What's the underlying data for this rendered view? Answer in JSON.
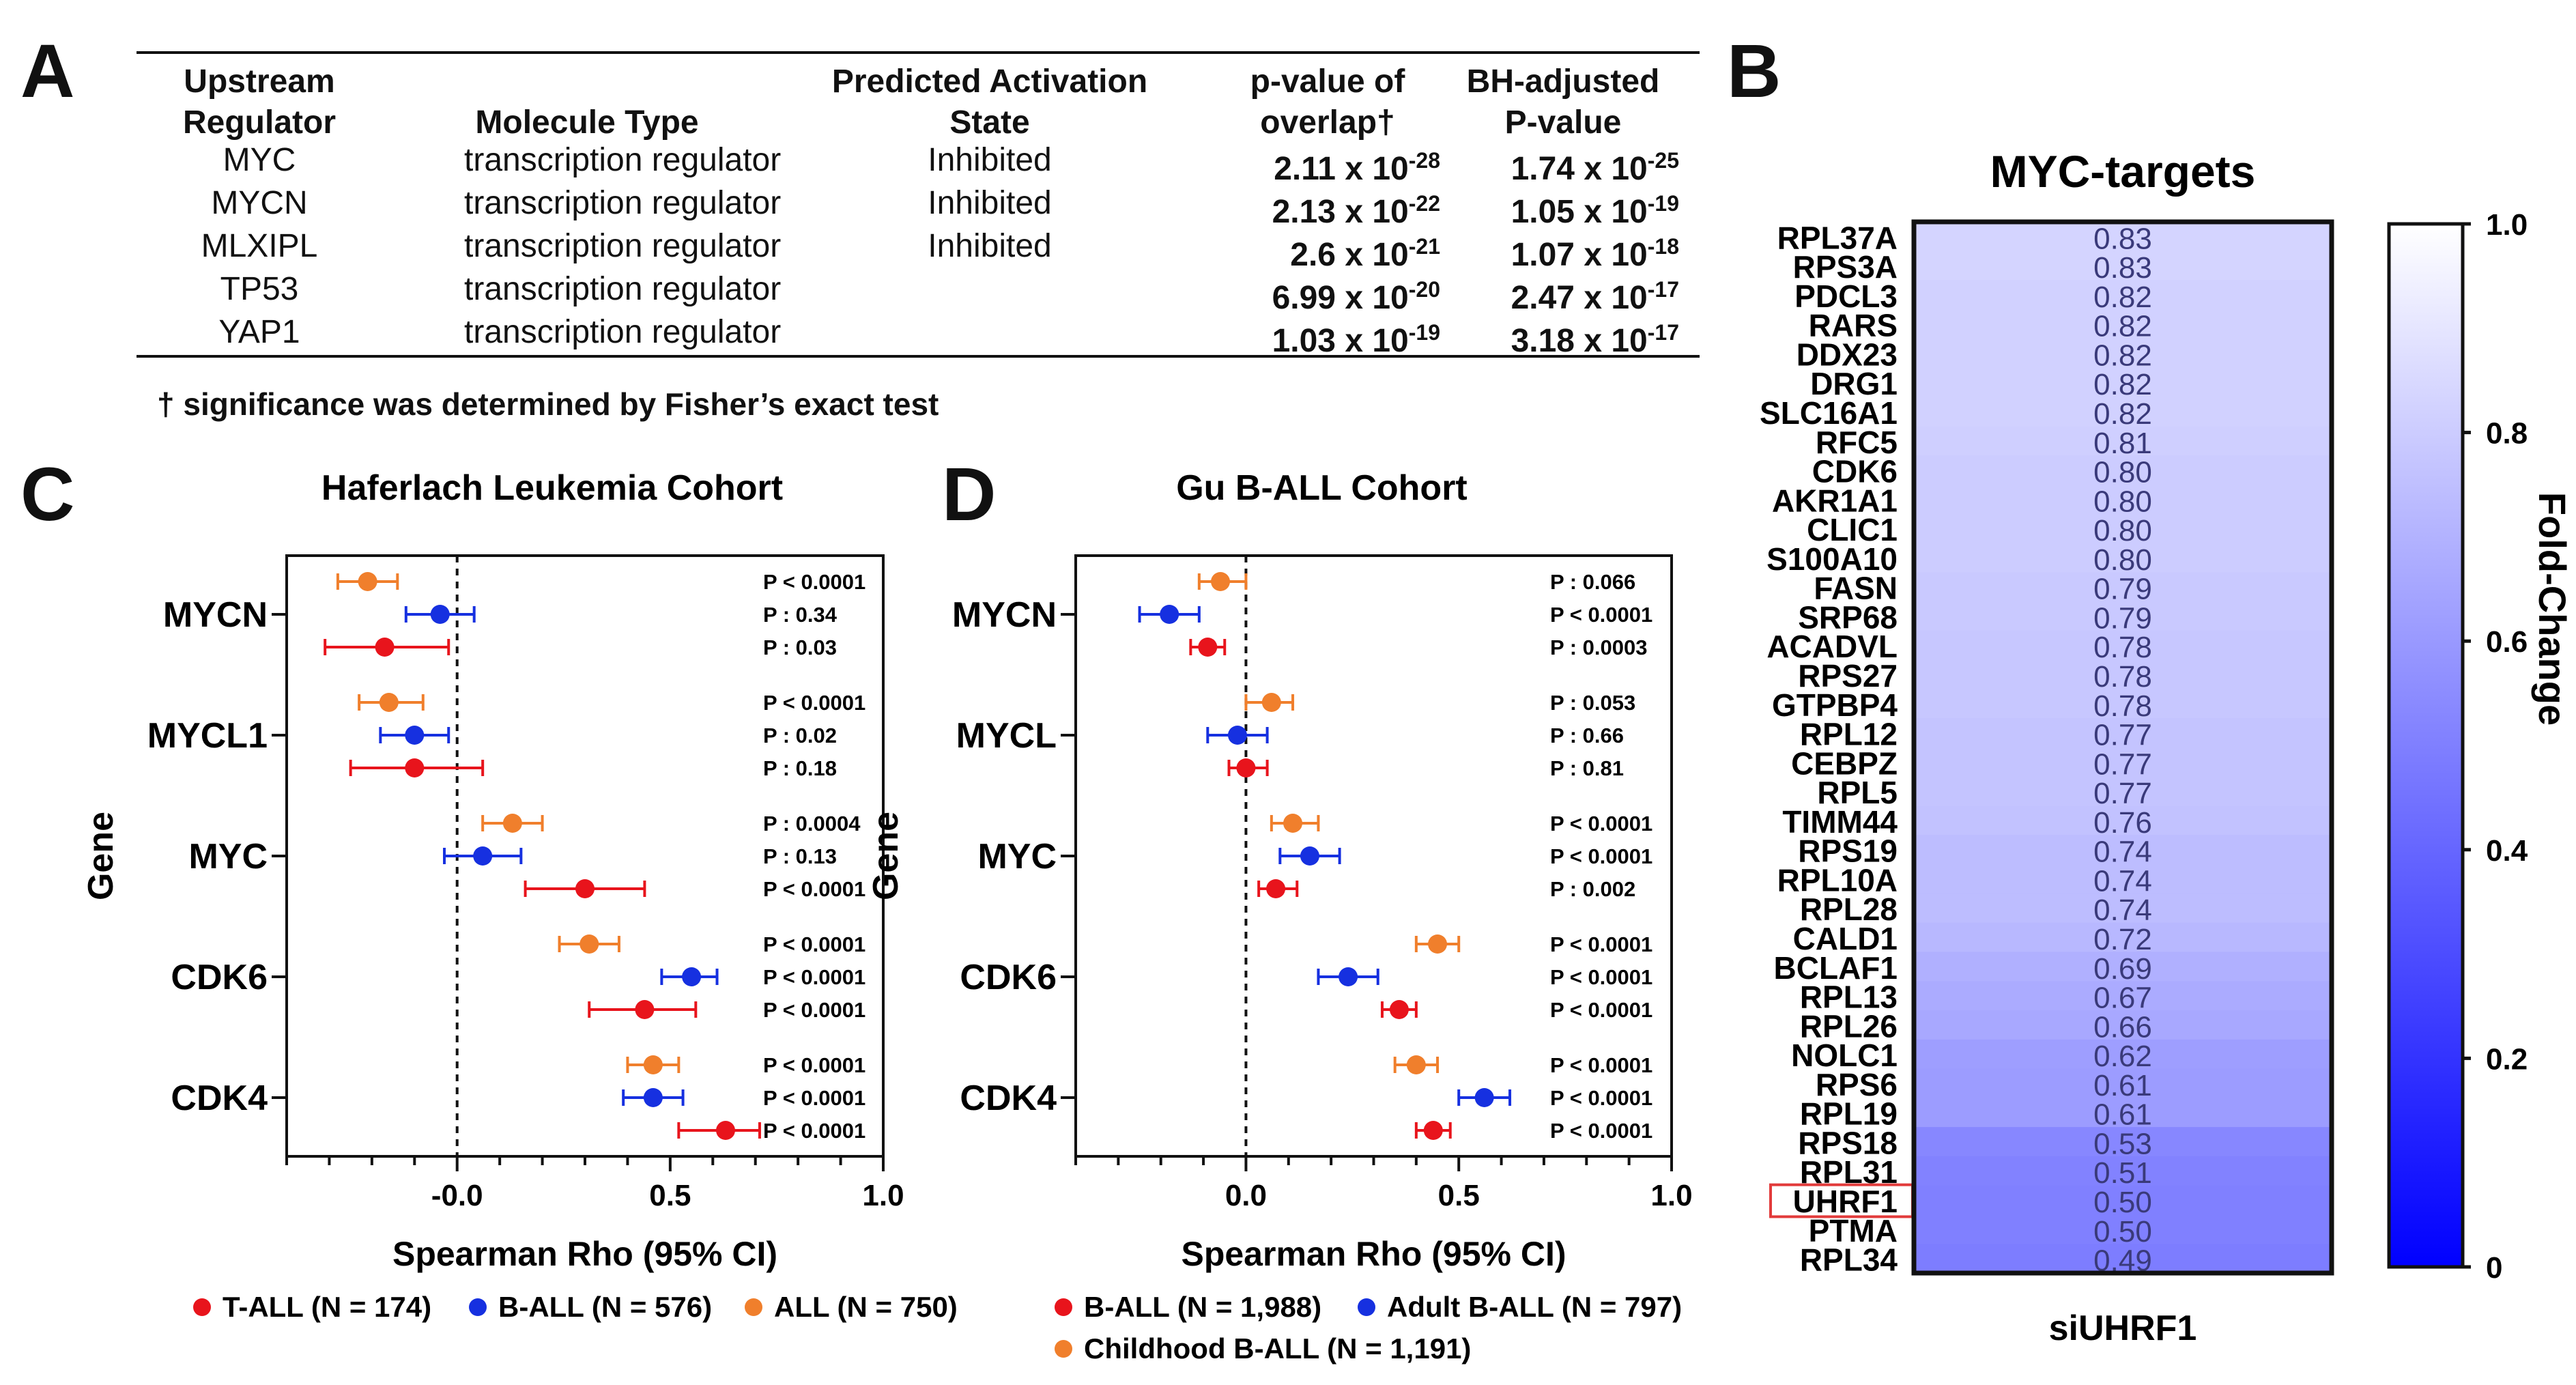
{
  "panel_labels": {
    "a": "A",
    "b": "B",
    "c": "C",
    "d": "D"
  },
  "table": {
    "headers": [
      [
        "Upstream",
        "Regulator"
      ],
      [
        "",
        "Molecule Type"
      ],
      [
        "Predicted Activation",
        "State"
      ],
      [
        "p-value of",
        "overlap†"
      ],
      [
        "BH-adjusted",
        "P-value"
      ]
    ],
    "rows": [
      {
        "regulator": "MYC",
        "type": "transcription regulator",
        "state": "Inhibited",
        "p_base": "2.11 x 10",
        "p_exp": "-28",
        "bh_base": "1.74 x 10",
        "bh_exp": "-25"
      },
      {
        "regulator": "MYCN",
        "type": "transcription regulator",
        "state": "Inhibited",
        "p_base": "2.13 x 10",
        "p_exp": "-22",
        "bh_base": "1.05 x 10",
        "bh_exp": "-19"
      },
      {
        "regulator": "MLXIPL",
        "type": "transcription regulator",
        "state": "Inhibited",
        "p_base": "2.6 x 10",
        "p_exp": "-21",
        "bh_base": "1.07 x 10",
        "bh_exp": "-18"
      },
      {
        "regulator": "TP53",
        "type": "transcription regulator",
        "state": "",
        "p_base": "6.99 x 10",
        "p_exp": "-20",
        "bh_base": "2.47 x 10",
        "bh_exp": "-17"
      },
      {
        "regulator": "YAP1",
        "type": "transcription regulator",
        "state": "",
        "p_base": "1.03 x 10",
        "p_exp": "-19",
        "bh_base": "3.18 x 10",
        "bh_exp": "-17"
      }
    ],
    "footnote": "† significance was determined by Fisher’s exact test"
  },
  "chart_data": [
    {
      "type": "scatter",
      "subtype": "forest",
      "title": "Haferlach Leukemia Cohort",
      "xlabel": "Spearman Rho (95% CI)",
      "ylabel": "Gene",
      "xlim": [
        -0.4,
        1.0
      ],
      "xticks": [
        "-0.0",
        "0.5",
        "1.0"
      ],
      "xtick_values": [
        0,
        0.5,
        1.0
      ],
      "reference_line": 0,
      "genes": [
        "MYCN",
        "MYCL1",
        "MYC",
        "CDK6",
        "CDK4"
      ],
      "series": [
        {
          "name": "ALL (N = 750)",
          "color": "#f07f2c",
          "values": [
            -0.21,
            -0.16,
            0.13,
            0.31,
            0.46
          ],
          "ci_low": [
            -0.28,
            -0.23,
            0.06,
            0.24,
            0.4
          ],
          "ci_high": [
            -0.14,
            -0.08,
            0.2,
            0.38,
            0.52
          ],
          "pvalues": [
            "P < 0.0001",
            "P < 0.0001",
            "P : 0.0004",
            "P < 0.0001",
            "P < 0.0001"
          ]
        },
        {
          "name": "B-ALL (N = 576)",
          "color": "#1630e0",
          "values": [
            -0.04,
            -0.1,
            0.06,
            0.55,
            0.46
          ],
          "ci_low": [
            -0.12,
            -0.18,
            -0.03,
            0.48,
            0.39
          ],
          "ci_high": [
            0.04,
            -0.02,
            0.15,
            0.61,
            0.53
          ],
          "pvalues": [
            "P : 0.34",
            "P : 0.02",
            "P : 0.13",
            "P < 0.0001",
            "P < 0.0001"
          ]
        },
        {
          "name": "T-ALL (N = 174)",
          "color": "#e8141c",
          "values": [
            -0.17,
            -0.1,
            0.3,
            0.44,
            0.63
          ],
          "ci_low": [
            -0.31,
            -0.25,
            0.16,
            0.31,
            0.52
          ],
          "ci_high": [
            -0.02,
            0.06,
            0.44,
            0.56,
            0.71
          ],
          "pvalues": [
            "P : 0.03",
            "P : 0.18",
            "P < 0.0001",
            "P < 0.0001",
            "P < 0.0001"
          ]
        }
      ],
      "legend": [
        {
          "label": "T-ALL (N = 174)",
          "color": "#e8141c"
        },
        {
          "label": "B-ALL (N = 576)",
          "color": "#1630e0"
        },
        {
          "label": "ALL (N = 750)",
          "color": "#f07f2c"
        }
      ]
    },
    {
      "type": "scatter",
      "subtype": "forest",
      "title": "Gu B-ALL Cohort",
      "xlabel": "Spearman Rho (95% CI)",
      "ylabel": "Gene",
      "xlim": [
        -0.4,
        1.0
      ],
      "xticks": [
        "0.0",
        "0.5",
        "1.0"
      ],
      "xtick_values": [
        0,
        0.5,
        1.0
      ],
      "reference_line": 0,
      "genes": [
        "MYCN",
        "MYCL",
        "MYC",
        "CDK6",
        "CDK4"
      ],
      "series": [
        {
          "name": "Childhood B-ALL (N = 1,191)",
          "color": "#f07f2c",
          "values": [
            -0.06,
            0.06,
            0.11,
            0.45,
            0.4
          ],
          "ci_low": [
            -0.11,
            0.0,
            0.06,
            0.4,
            0.35
          ],
          "ci_high": [
            0.0,
            0.11,
            0.17,
            0.5,
            0.45
          ],
          "pvalues": [
            "P : 0.066",
            "P : 0.053",
            "P < 0.0001",
            "P < 0.0001",
            "P < 0.0001"
          ]
        },
        {
          "name": "Adult B-ALL (N = 797)",
          "color": "#1630e0",
          "values": [
            -0.18,
            -0.02,
            0.15,
            0.24,
            0.56
          ],
          "ci_low": [
            -0.25,
            -0.09,
            0.08,
            0.17,
            0.5
          ],
          "ci_high": [
            -0.11,
            0.05,
            0.22,
            0.31,
            0.62
          ],
          "pvalues": [
            "P < 0.0001",
            "P : 0.66",
            "P < 0.0001",
            "P < 0.0001",
            "P < 0.0001"
          ]
        },
        {
          "name": "B-ALL (N = 1,988)",
          "color": "#e8141c",
          "values": [
            -0.09,
            0.0,
            0.07,
            0.36,
            0.44
          ],
          "ci_low": [
            -0.13,
            -0.04,
            0.03,
            0.32,
            0.4
          ],
          "ci_high": [
            -0.05,
            0.05,
            0.12,
            0.4,
            0.48
          ],
          "pvalues": [
            "P : 0.0003",
            "P : 0.81",
            "P : 0.002",
            "P < 0.0001",
            "P < 0.0001"
          ]
        }
      ],
      "legend": [
        {
          "label": "B-ALL (N = 1,988)",
          "color": "#e8141c"
        },
        {
          "label": "Adult  B-ALL (N = 797)",
          "color": "#1630e0"
        },
        {
          "label": "Childhood  B-ALL (N = 1,191)",
          "color": "#f07f2c"
        }
      ]
    },
    {
      "type": "heatmap",
      "title": "MYC-targets",
      "xlabel": "siUHRF1",
      "colorbar_label": "Fold-Change",
      "colorbar_range": [
        0,
        1.0
      ],
      "colorbar_ticks": [
        "0",
        "0.2",
        "0.4",
        "0.6",
        "0.8",
        "1.0"
      ],
      "colorbar_tick_values": [
        0,
        0.2,
        0.4,
        0.6,
        0.8,
        1.0
      ],
      "highlighted_gene": "UHRF1",
      "genes": [
        "RPL37A",
        "RPS3A",
        "PDCL3",
        "RARS",
        "DDX23",
        "DRG1",
        "SLC16A1",
        "RFC5",
        "CDK6",
        "AKR1A1",
        "CLIC1",
        "S100A10",
        "FASN",
        "SRP68",
        "ACADVL",
        "RPS27",
        "GTPBP4",
        "RPL12",
        "CEBPZ",
        "RPL5",
        "TIMM44",
        "RPS19",
        "RPL10A",
        "RPL28",
        "CALD1",
        "BCLAF1",
        "RPL13",
        "RPL26",
        "NOLC1",
        "RPS6",
        "RPL19",
        "RPS18",
        "RPL31",
        "UHRF1",
        "PTMA",
        "RPL34"
      ],
      "values": [
        0.83,
        0.83,
        0.82,
        0.82,
        0.82,
        0.82,
        0.82,
        0.81,
        0.8,
        0.8,
        0.8,
        0.8,
        0.79,
        0.79,
        0.78,
        0.78,
        0.78,
        0.77,
        0.77,
        0.77,
        0.76,
        0.74,
        0.74,
        0.74,
        0.72,
        0.69,
        0.67,
        0.66,
        0.62,
        0.61,
        0.61,
        0.53,
        0.51,
        0.5,
        0.5,
        0.49
      ],
      "value_labels": [
        "0.83",
        "0.83",
        "0.82",
        "0.82",
        "0.82",
        "0.82",
        "0.82",
        "0.81",
        "0.80",
        "0.80",
        "0.80",
        "0.80",
        "0.79",
        "0.79",
        "0.78",
        "0.78",
        "0.78",
        "0.77",
        "0.77",
        "0.77",
        "0.76",
        "0.74",
        "0.74",
        "0.74",
        "0.72",
        "0.69",
        "0.67",
        "0.66",
        "0.62",
        "0.61",
        "0.61",
        "0.53",
        "0.51",
        "0.50",
        "0.50",
        "0.49"
      ]
    }
  ]
}
